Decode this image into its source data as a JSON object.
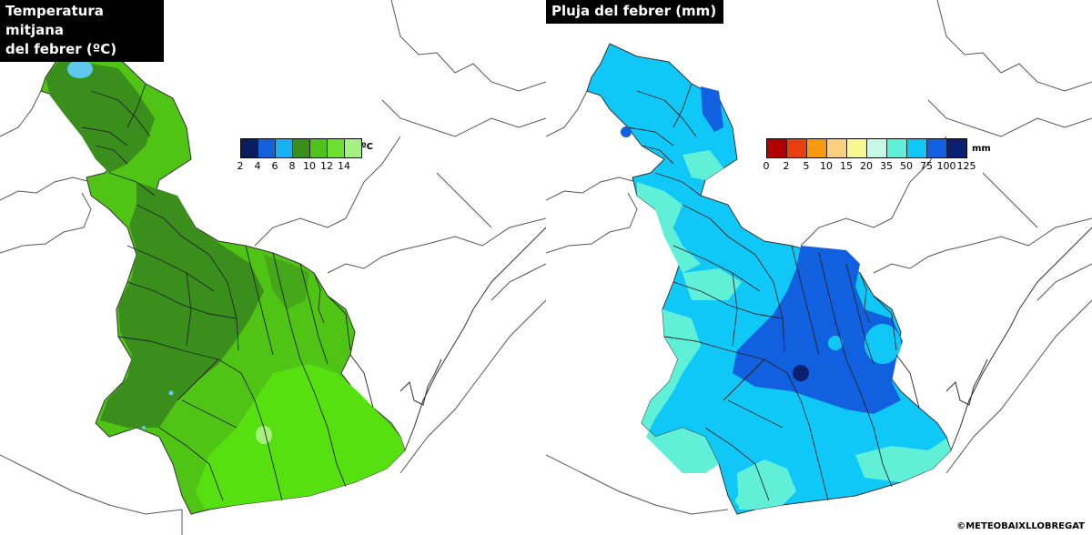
{
  "temperature_map": {
    "title": "Temperatura mitjana\ndel febrer (ºC)",
    "unit": "ºC",
    "legend_ticks": [
      "2",
      "4",
      "6",
      "8",
      "10",
      "12",
      "14"
    ],
    "legend_colors": [
      "#0a1d5c",
      "#1560d8",
      "#18b0f0",
      "#3a8f1c",
      "#4ec41a",
      "#6ee032",
      "#a6f080"
    ],
    "fill_colors": {
      "cold_upland": "#3a8f1c",
      "mid": "#4fc414",
      "warm_lowland": "#56e010",
      "warm_spot": "#a6f080",
      "cold_spot": "#5ec8f0"
    }
  },
  "rain_map": {
    "title": "Pluja del febrer (mm)",
    "unit": "mm",
    "legend_ticks": [
      "0",
      "2",
      "5",
      "10",
      "15",
      "20",
      "35",
      "50",
      "75",
      "100",
      "125"
    ],
    "legend_colors": [
      "#b00000",
      "#e84010",
      "#f89a10",
      "#f8d080",
      "#f8f890",
      "#c8f8e8",
      "#60f0d8",
      "#10c8f8",
      "#1060e0",
      "#0a2070"
    ],
    "fill_colors": {
      "low": "#60f0d8",
      "mid": "#10c8f8",
      "high": "#1060e0",
      "very_high": "#0a2070"
    }
  },
  "credit": "©METEOBAIXLLOBREGAT"
}
